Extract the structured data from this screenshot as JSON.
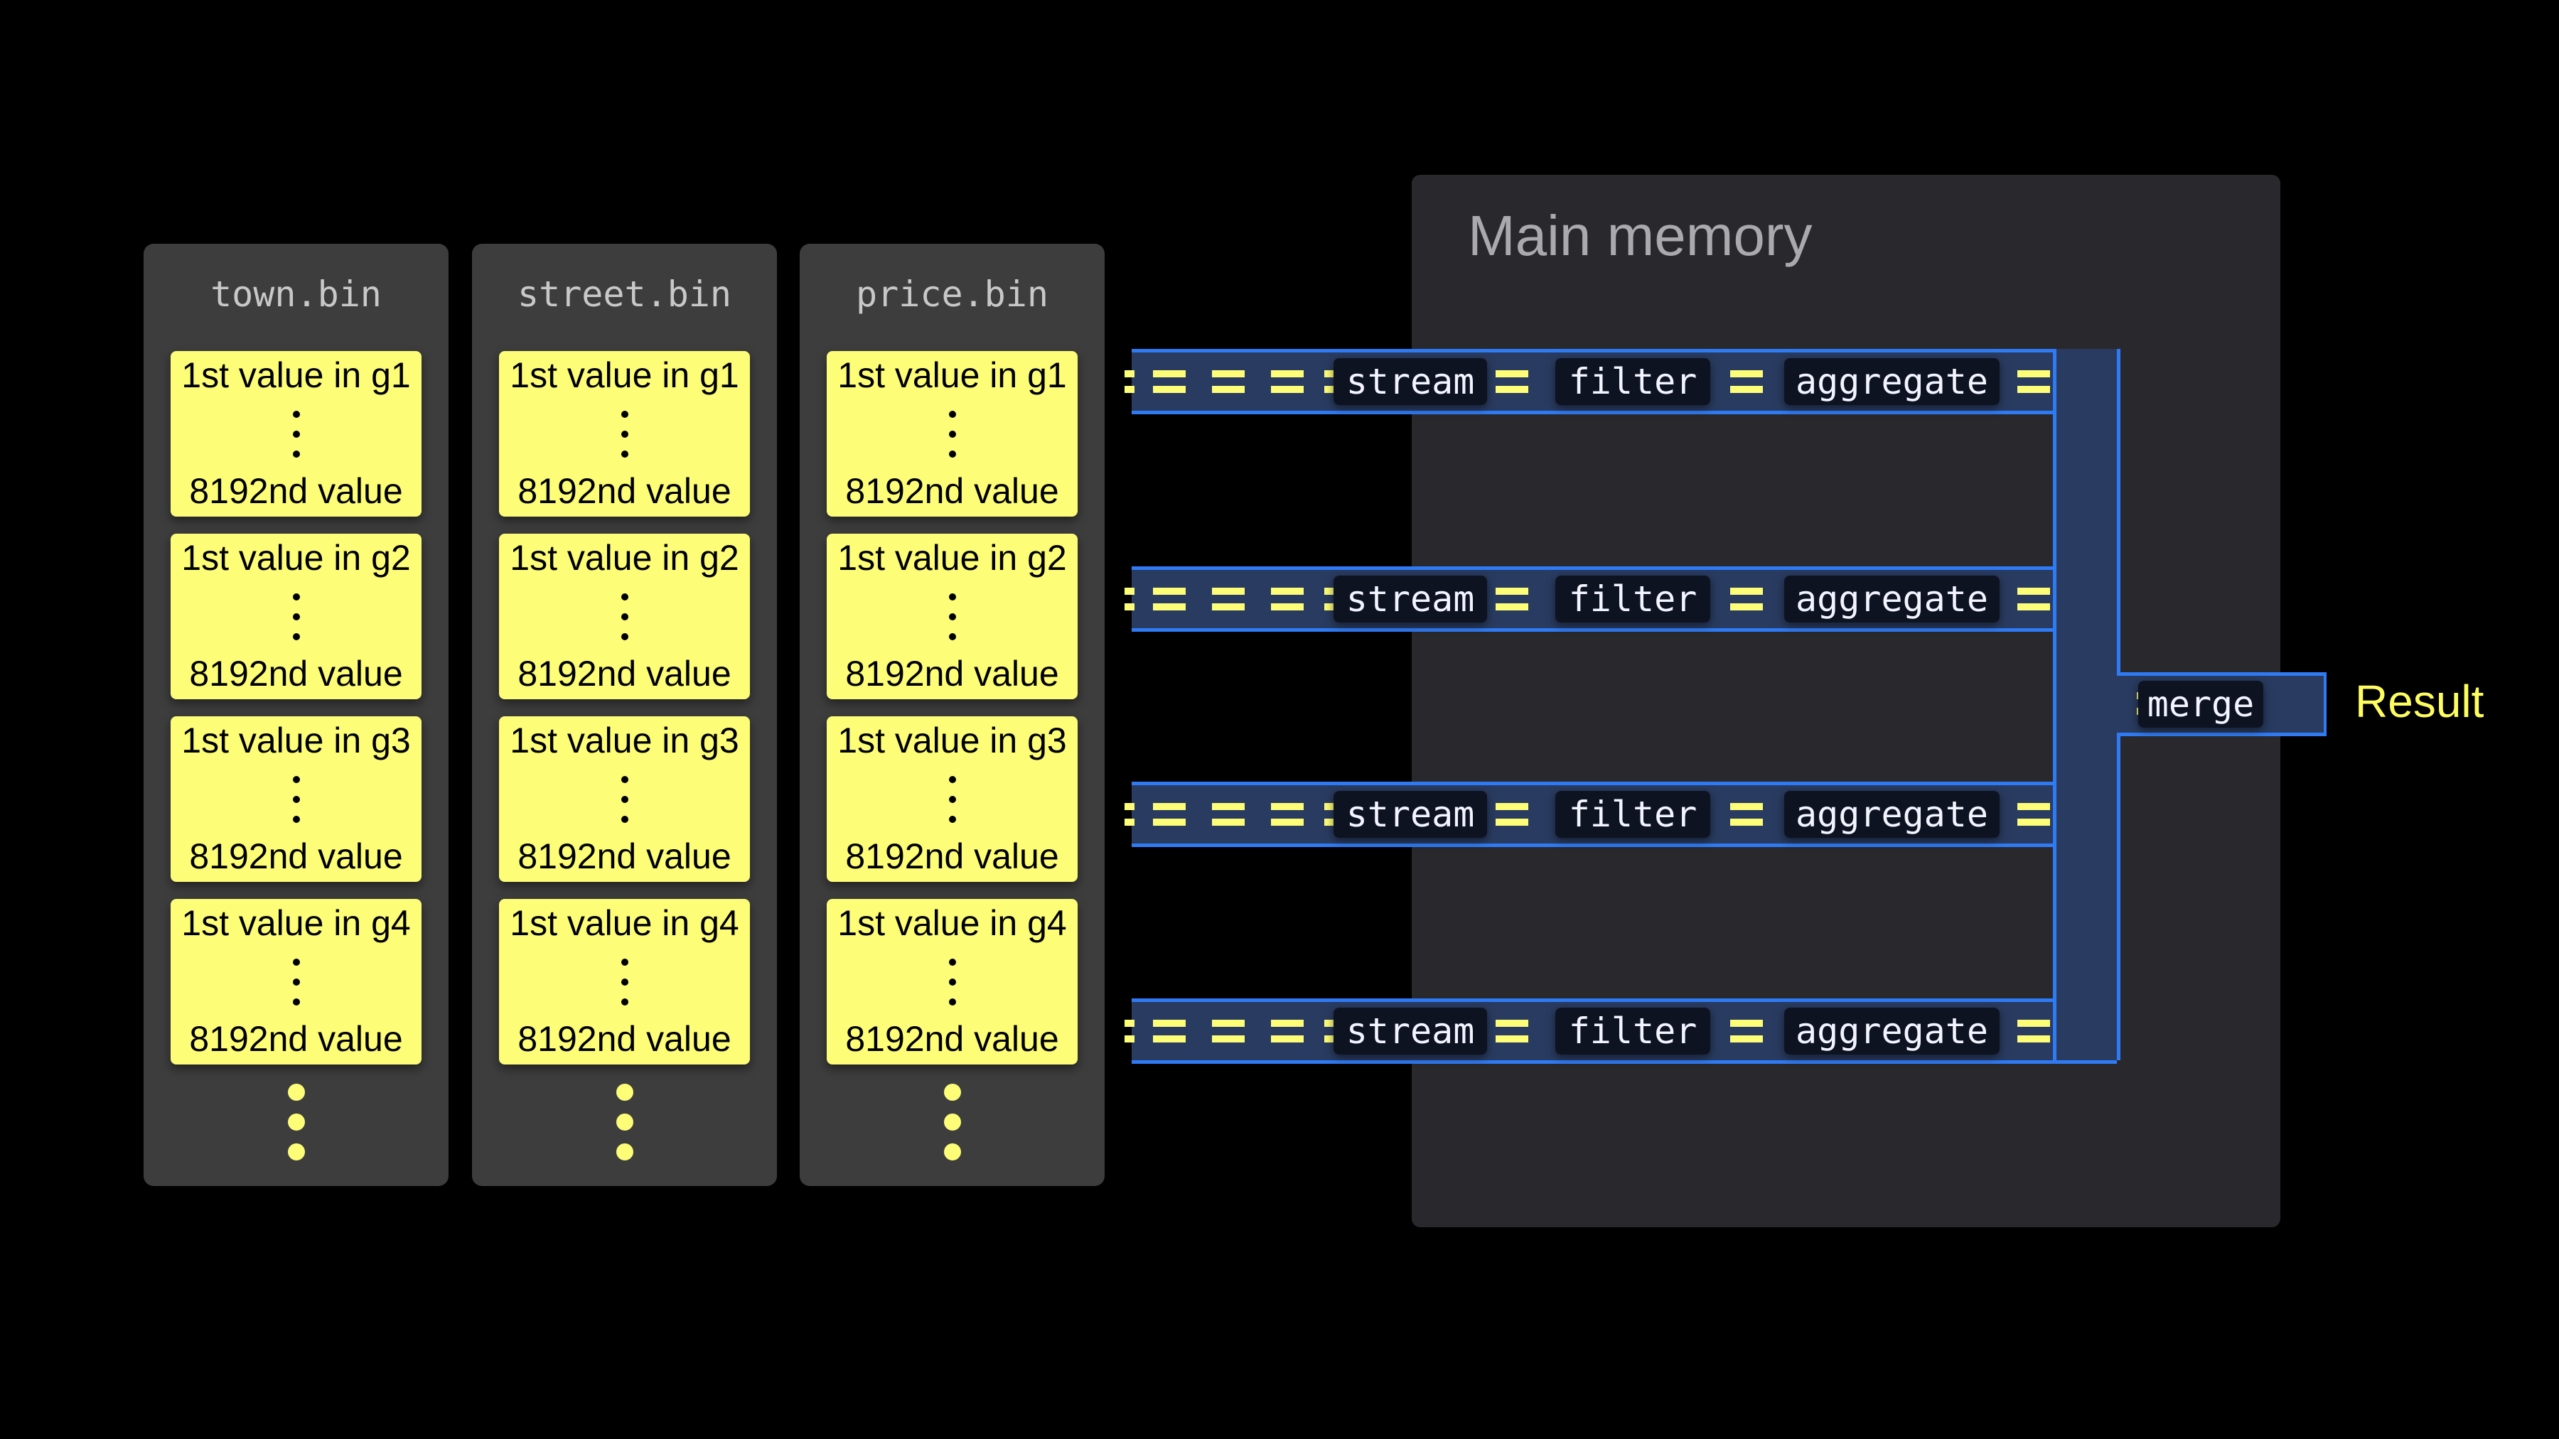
{
  "colors": {
    "background": "#000000",
    "file_panel": "#3d3d3d",
    "value_block": "#fdfd78",
    "main_memory": "#29292d",
    "pipe_fill": "#293b60",
    "pipe_border": "#2f7bf5",
    "result_text": "#fdfd60"
  },
  "files": [
    {
      "name": "town.bin",
      "granules": [
        {
          "first": "1st value in g1",
          "last": "8192nd value"
        },
        {
          "first": "1st value in g2",
          "last": "8192nd value"
        },
        {
          "first": "1st value in g3",
          "last": "8192nd value"
        },
        {
          "first": "1st value in g4",
          "last": "8192nd value"
        }
      ]
    },
    {
      "name": "street.bin",
      "granules": [
        {
          "first": "1st value in g1",
          "last": "8192nd value"
        },
        {
          "first": "1st value in g2",
          "last": "8192nd value"
        },
        {
          "first": "1st value in g3",
          "last": "8192nd value"
        },
        {
          "first": "1st value in g4",
          "last": "8192nd value"
        }
      ]
    },
    {
      "name": "price.bin",
      "granules": [
        {
          "first": "1st value in g1",
          "last": "8192nd value"
        },
        {
          "first": "1st value in g2",
          "last": "8192nd value"
        },
        {
          "first": "1st value in g3",
          "last": "8192nd value"
        },
        {
          "first": "1st value in g4",
          "last": "8192nd value"
        }
      ]
    }
  ],
  "main_memory": {
    "title": "Main memory"
  },
  "lanes": [
    {
      "stages": [
        "stream",
        "filter",
        "aggregate"
      ]
    },
    {
      "stages": [
        "stream",
        "filter",
        "aggregate"
      ]
    },
    {
      "stages": [
        "stream",
        "filter",
        "aggregate"
      ]
    },
    {
      "stages": [
        "stream",
        "filter",
        "aggregate"
      ]
    }
  ],
  "merge": {
    "label": "merge"
  },
  "result": {
    "label": "Result"
  }
}
